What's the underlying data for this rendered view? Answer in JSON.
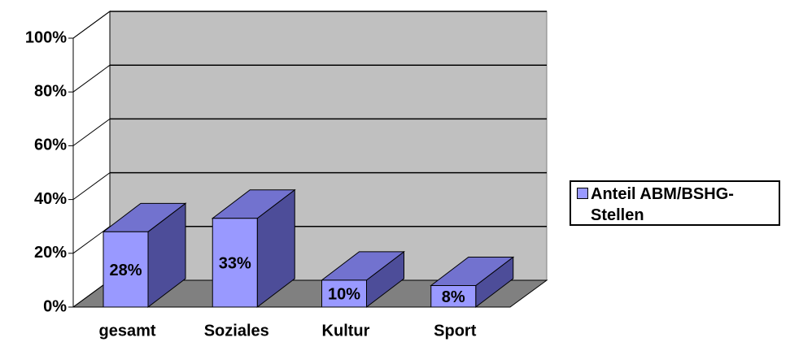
{
  "chart_data": {
    "type": "bar3d",
    "categories": [
      "gesamt",
      "Soziales",
      "Kultur",
      "Sport"
    ],
    "series": [
      {
        "name": "Anteil ABM/BSHG-Stellen",
        "color": "#9999ff",
        "values": [
          28,
          33,
          10,
          8
        ],
        "value_labels": [
          "28%",
          "33%",
          "10%",
          "8%"
        ]
      }
    ],
    "ylim": [
      0,
      100
    ],
    "yticks": [
      {
        "value": 0,
        "label": "0%"
      },
      {
        "value": 20,
        "label": "20%"
      },
      {
        "value": 40,
        "label": "40%"
      },
      {
        "value": 60,
        "label": "60%"
      },
      {
        "value": 80,
        "label": "80%"
      },
      {
        "value": 100,
        "label": "100%"
      }
    ],
    "grid": true,
    "legend": "right"
  }
}
